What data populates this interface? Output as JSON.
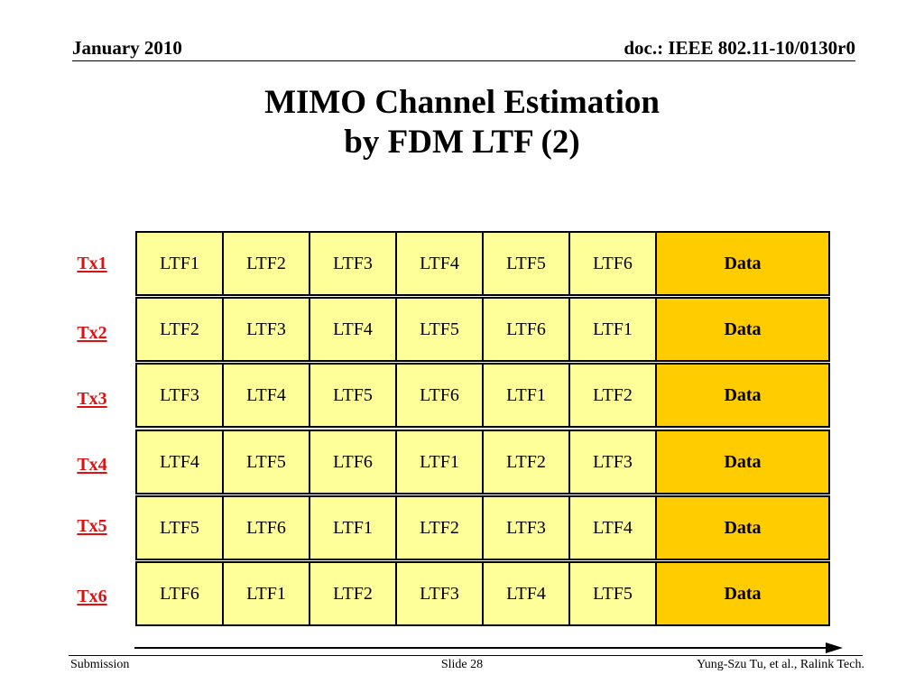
{
  "header": {
    "date": "January 2010",
    "doc_id": "doc.: IEEE 802.11-10/0130r0"
  },
  "title": {
    "line1": "MIMO Channel Estimation",
    "line2": "by FDM LTF (2)"
  },
  "table": {
    "rows": [
      {
        "tx": "Tx1",
        "cells": [
          "LTF1",
          "LTF2",
          "LTF3",
          "LTF4",
          "LTF5",
          "LTF6"
        ],
        "data": "Data"
      },
      {
        "tx": "Tx2",
        "cells": [
          "LTF2",
          "LTF3",
          "LTF4",
          "LTF5",
          "LTF6",
          "LTF1"
        ],
        "data": "Data"
      },
      {
        "tx": "Tx3",
        "cells": [
          "LTF3",
          "LTF4",
          "LTF5",
          "LTF6",
          "LTF1",
          "LTF2"
        ],
        "data": "Data"
      },
      {
        "tx": "Tx4",
        "cells": [
          "LTF4",
          "LTF5",
          "LTF6",
          "LTF1",
          "LTF2",
          "LTF3"
        ],
        "data": "Data"
      },
      {
        "tx": "Tx5",
        "cells": [
          "LTF5",
          "LTF6",
          "LTF1",
          "LTF2",
          "LTF3",
          "LTF4"
        ],
        "data": "Data"
      },
      {
        "tx": "Tx6",
        "cells": [
          "LTF6",
          "LTF1",
          "LTF2",
          "LTF3",
          "LTF4",
          "LTF5"
        ],
        "data": "Data"
      }
    ]
  },
  "colors": {
    "ltf_fill": "#ffff99",
    "data_fill": "#ffcc00",
    "tx_label": "#e01010"
  },
  "footer": {
    "left": "Submission",
    "center": "Slide 28",
    "right": "Yung-Szu Tu, et al., Ralink Tech."
  }
}
